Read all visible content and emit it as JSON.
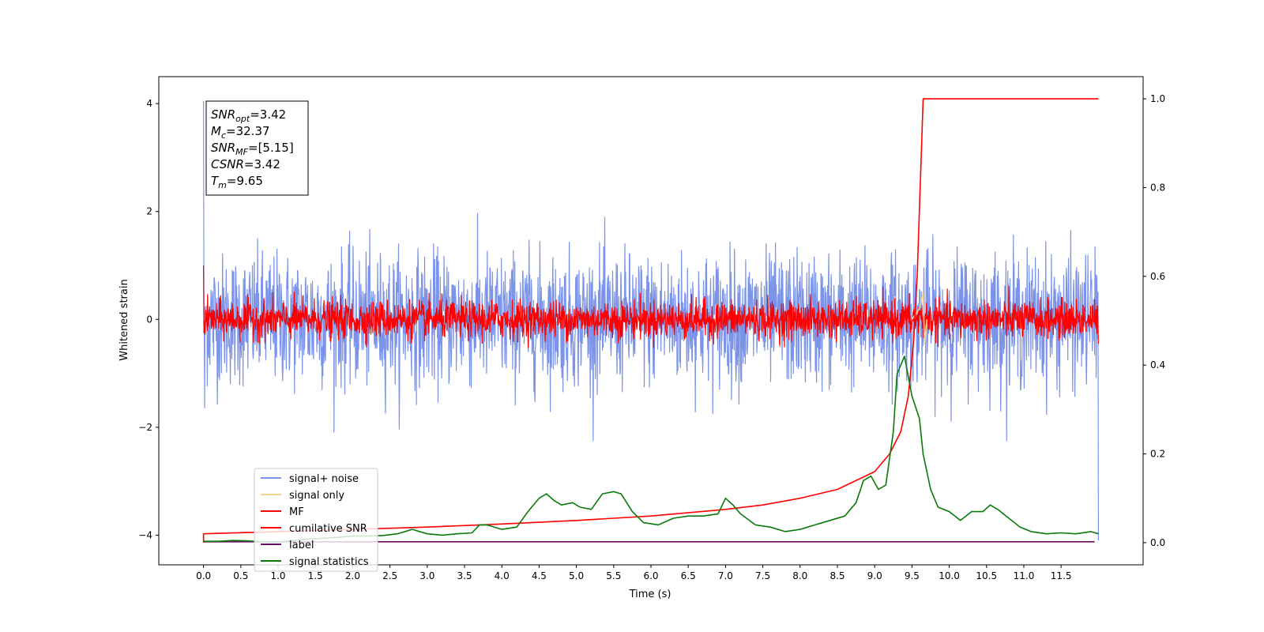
{
  "chart_data": {
    "type": "line",
    "xlabel": "Time (s)",
    "ylabel": "Whitened strain",
    "x_range": [
      -0.6,
      12.6
    ],
    "y_range": [
      -4.55,
      4.5
    ],
    "y2_range": [
      -0.05,
      1.05
    ],
    "x_ticks": [
      "0.0",
      "0.5",
      "1.0",
      "1.5",
      "2.0",
      "2.5",
      "3.0",
      "3.5",
      "4.0",
      "4.5",
      "5.0",
      "5.5",
      "6.0",
      "6.5",
      "7.0",
      "7.5",
      "8.0",
      "8.5",
      "9.0",
      "9.5",
      "10.0",
      "10.5",
      "11.0",
      "11.5"
    ],
    "y_ticks": [
      "4",
      "2",
      "0",
      "−2",
      "−4"
    ],
    "y2_ticks": [
      "1.0",
      "0.8",
      "0.6",
      "0.4",
      "0.2",
      "0.0"
    ],
    "annotation": {
      "lines": [
        {
          "base": "SNR",
          "sub": "opt",
          "value": "=3.42"
        },
        {
          "base": "M",
          "sub": "c",
          "value": "=32.37"
        },
        {
          "base": "SNR",
          "sub": "MF",
          "value": "=[5.15]"
        },
        {
          "base": "CSNR",
          "sub": "",
          "value": "=3.42"
        },
        {
          "base": "T",
          "sub": "m",
          "value": "=9.65"
        }
      ]
    },
    "legend": {
      "placement": "lower-left",
      "entries": [
        {
          "label": "signal+ noise",
          "color": "#7b93e8"
        },
        {
          "label": "signal only",
          "color": "#f5d58a"
        },
        {
          "label": "MF",
          "color": "#ff0000"
        },
        {
          "label": "cumilative SNR",
          "color": "#ff0000"
        },
        {
          "label": "label",
          "color": "#6a0d6a"
        },
        {
          "label": "signal statistics",
          "color": "#0a7a0a"
        }
      ]
    },
    "series": [
      {
        "name": "signal+ noise",
        "axis": "left",
        "color": "#7b93e8",
        "t_range": [
          0,
          12.0
        ],
        "mean": 0.0,
        "std": 0.6,
        "typical_max": 1.5,
        "typical_min": -1.5,
        "peak_max": 4.05,
        "peak_min": -4.1
      },
      {
        "name": "MF",
        "axis": "left",
        "color": "#ff0000",
        "t_range": [
          0,
          12.0
        ],
        "mean": 0.0,
        "std": 0.17,
        "typical_max": 0.45,
        "typical_min": -0.35,
        "peak_max": 1.0,
        "peak_min": -0.45
      },
      {
        "name": "signal only",
        "axis": "left",
        "color": "#f5d58a",
        "points": [
          [
            9.5,
            0
          ],
          [
            9.6,
            0.2
          ],
          [
            9.65,
            0.5
          ],
          [
            9.67,
            -0.45
          ],
          [
            9.7,
            0
          ]
        ]
      },
      {
        "name": "cumilative SNR",
        "axis": "right",
        "color": "#ff0000",
        "points": [
          [
            0.0,
            0.0
          ],
          [
            0.0,
            0.02
          ],
          [
            1,
            0.025
          ],
          [
            2,
            0.03
          ],
          [
            3,
            0.035
          ],
          [
            4,
            0.042
          ],
          [
            5,
            0.05
          ],
          [
            6,
            0.06
          ],
          [
            7,
            0.075
          ],
          [
            7.5,
            0.085
          ],
          [
            8.0,
            0.1
          ],
          [
            8.5,
            0.12
          ],
          [
            9.0,
            0.16
          ],
          [
            9.2,
            0.2
          ],
          [
            9.35,
            0.25
          ],
          [
            9.45,
            0.33
          ],
          [
            9.52,
            0.45
          ],
          [
            9.57,
            0.6
          ],
          [
            9.6,
            0.75
          ],
          [
            9.63,
            0.9
          ],
          [
            9.65,
            1.0
          ],
          [
            12.0,
            1.0
          ]
        ]
      },
      {
        "name": "label",
        "axis": "right",
        "color": "#6a0d6a",
        "points": [
          [
            0,
            0.002
          ],
          [
            11.95,
            0.002
          ]
        ]
      },
      {
        "name": "signal statistics",
        "axis": "right",
        "color": "#0a7a0a",
        "points": [
          [
            0.0,
            0.003
          ],
          [
            0.2,
            0.003
          ],
          [
            0.4,
            0.005
          ],
          [
            0.6,
            0.004
          ],
          [
            0.8,
            0.002
          ],
          [
            1.0,
            0.001
          ],
          [
            1.2,
            0.005
          ],
          [
            1.4,
            0.008
          ],
          [
            1.6,
            0.01
          ],
          [
            1.8,
            0.012
          ],
          [
            2.0,
            0.015
          ],
          [
            2.2,
            0.015
          ],
          [
            2.4,
            0.016
          ],
          [
            2.6,
            0.02
          ],
          [
            2.8,
            0.03
          ],
          [
            3.0,
            0.02
          ],
          [
            3.2,
            0.017
          ],
          [
            3.4,
            0.02
          ],
          [
            3.6,
            0.022
          ],
          [
            3.7,
            0.04
          ],
          [
            3.8,
            0.04
          ],
          [
            4.0,
            0.03
          ],
          [
            4.2,
            0.035
          ],
          [
            4.35,
            0.07
          ],
          [
            4.5,
            0.1
          ],
          [
            4.6,
            0.11
          ],
          [
            4.7,
            0.095
          ],
          [
            4.8,
            0.085
          ],
          [
            4.95,
            0.09
          ],
          [
            5.05,
            0.08
          ],
          [
            5.2,
            0.075
          ],
          [
            5.35,
            0.11
          ],
          [
            5.5,
            0.115
          ],
          [
            5.6,
            0.11
          ],
          [
            5.75,
            0.07
          ],
          [
            5.9,
            0.045
          ],
          [
            6.1,
            0.04
          ],
          [
            6.3,
            0.055
          ],
          [
            6.5,
            0.06
          ],
          [
            6.7,
            0.06
          ],
          [
            6.9,
            0.065
          ],
          [
            7.0,
            0.1
          ],
          [
            7.1,
            0.085
          ],
          [
            7.2,
            0.065
          ],
          [
            7.4,
            0.04
          ],
          [
            7.6,
            0.035
          ],
          [
            7.8,
            0.025
          ],
          [
            8.0,
            0.03
          ],
          [
            8.2,
            0.04
          ],
          [
            8.4,
            0.05
          ],
          [
            8.6,
            0.06
          ],
          [
            8.75,
            0.09
          ],
          [
            8.85,
            0.14
          ],
          [
            8.95,
            0.15
          ],
          [
            9.05,
            0.12
          ],
          [
            9.15,
            0.13
          ],
          [
            9.25,
            0.25
          ],
          [
            9.3,
            0.38
          ],
          [
            9.4,
            0.42
          ],
          [
            9.5,
            0.33
          ],
          [
            9.6,
            0.28
          ],
          [
            9.65,
            0.2
          ],
          [
            9.75,
            0.12
          ],
          [
            9.85,
            0.08
          ],
          [
            10.0,
            0.07
          ],
          [
            10.15,
            0.05
          ],
          [
            10.3,
            0.07
          ],
          [
            10.45,
            0.07
          ],
          [
            10.55,
            0.085
          ],
          [
            10.65,
            0.075
          ],
          [
            10.8,
            0.055
          ],
          [
            10.95,
            0.035
          ],
          [
            11.1,
            0.025
          ],
          [
            11.3,
            0.02
          ],
          [
            11.5,
            0.022
          ],
          [
            11.7,
            0.02
          ],
          [
            11.9,
            0.025
          ],
          [
            12.0,
            0.02
          ]
        ]
      }
    ]
  }
}
